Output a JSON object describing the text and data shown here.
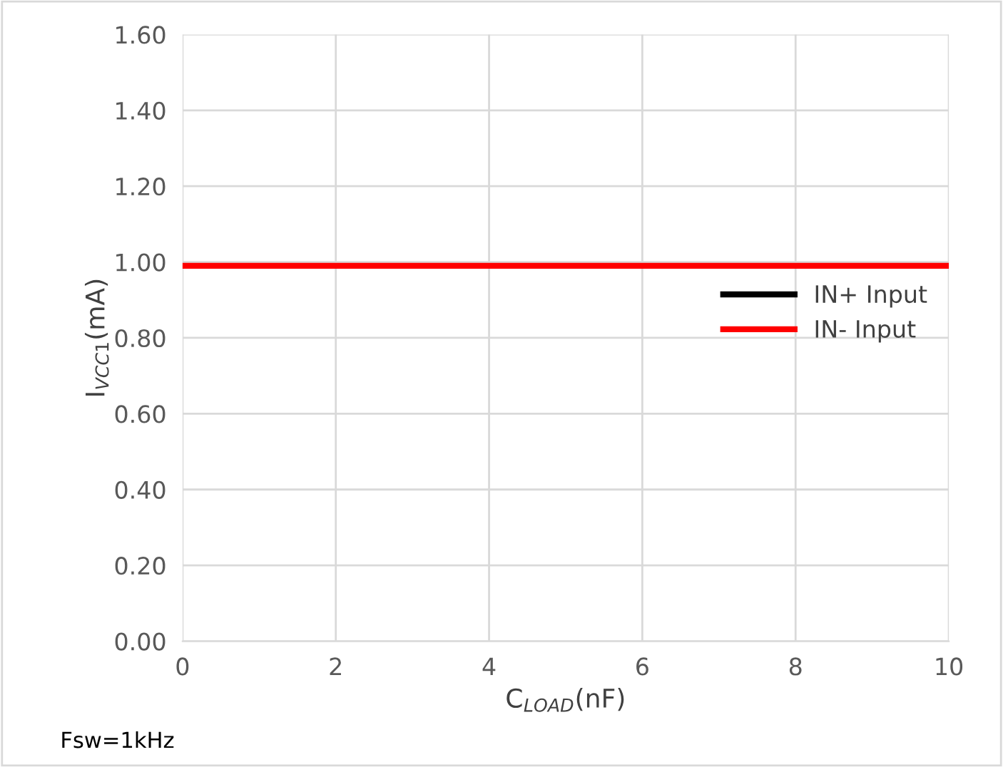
{
  "chart_data": {
    "type": "line",
    "xlabel": "C$_{LOAD}$(nF)",
    "ylabel": "I$_{VCC1}$(mA)",
    "x": [
      0,
      10
    ],
    "series": [
      {
        "name": "IN+ Input",
        "color": "#000000",
        "values": [
          null,
          null
        ]
      },
      {
        "name": "IN- Input",
        "color": "#ff0000",
        "values": [
          0.99,
          0.99
        ]
      }
    ],
    "xlim": [
      0,
      10
    ],
    "xticks": [
      0,
      2,
      4,
      6,
      8,
      10
    ],
    "ylim": [
      0,
      1.6
    ],
    "yticks": [
      {
        "value": 0,
        "label": "0.00"
      },
      {
        "value": 0.2,
        "label": "0.20"
      },
      {
        "value": 0.4,
        "label": "0.40"
      },
      {
        "value": 0.6,
        "label": "0.60"
      },
      {
        "value": 0.8,
        "label": "0.80"
      },
      {
        "value": 1.0,
        "label": "1.00"
      },
      {
        "value": 1.2,
        "label": "1.20"
      },
      {
        "value": 1.4,
        "label": "1.40"
      },
      {
        "value": 1.6,
        "label": "1.60"
      }
    ],
    "grid": true,
    "legend": "right",
    "marker": "none",
    "line_style": "solid",
    "annotations": [
      "Fsw=1kHz"
    ]
  }
}
